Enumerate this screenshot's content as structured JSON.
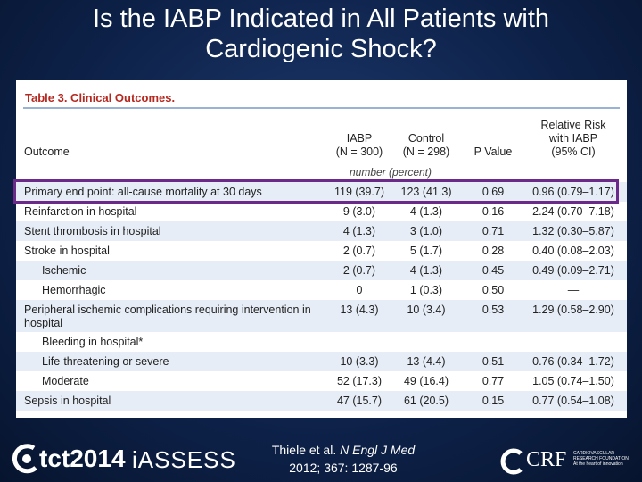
{
  "title": [
    "Is the IABP Indicated in All Patients with",
    "Cardiogenic Shock?"
  ],
  "table": {
    "caption": "Table 3. Clinical Outcomes.",
    "header": [
      [
        "Outcome"
      ],
      [
        "IABP",
        "(N = 300)"
      ],
      [
        "Control",
        "(N = 298)"
      ],
      [
        "P Value"
      ],
      [
        "Relative Risk",
        "with IABP",
        "(95% CI)"
      ]
    ],
    "unit_note": "number (percent)",
    "rows": [
      {
        "cells": [
          "Primary end point: all-cause mortality at 30 days",
          "119 (39.7)",
          "123 (41.3)",
          "0.69",
          "0.96 (0.79–1.17)"
        ],
        "highlight": true
      },
      {
        "cells": [
          "Reinfarction in hospital",
          "9 (3.0)",
          "4 (1.3)",
          "0.16",
          "2.24 (0.70–7.18)"
        ]
      },
      {
        "cells": [
          "Stent thrombosis in hospital",
          "4 (1.3)",
          "3 (1.0)",
          "0.71",
          "1.32 (0.30–5.87)"
        ]
      },
      {
        "cells": [
          "Stroke in hospital",
          "2 (0.7)",
          "5 (1.7)",
          "0.28",
          "0.40 (0.08–2.03)"
        ]
      },
      {
        "cells": [
          "Ischemic",
          "2 (0.7)",
          "4 (1.3)",
          "0.45",
          "0.49 (0.09–2.71)"
        ],
        "sub": true
      },
      {
        "cells": [
          "Hemorrhagic",
          "0",
          "1 (0.3)",
          "0.50",
          "—"
        ],
        "sub": true
      },
      {
        "cells": [
          "Peripheral ischemic complications requiring intervention in hospital",
          "13 (4.3)",
          "10 (3.4)",
          "0.53",
          "1.29 (0.58–2.90)"
        ]
      },
      {
        "cells": [
          "Bleeding in hospital*"
        ],
        "sub": true
      },
      {
        "cells": [
          "Life-threatening or severe",
          "10 (3.3)",
          "13 (4.4)",
          "0.51",
          "0.76 (0.34–1.72)"
        ],
        "sub": true
      },
      {
        "cells": [
          "Moderate",
          "52 (17.3)",
          "49 (16.4)",
          "0.77",
          "1.05 (0.74–1.50)"
        ],
        "sub": true
      },
      {
        "cells": [
          "Sepsis in hospital",
          "47 (15.7)",
          "61 (20.5)",
          "0.15",
          "0.77 (0.54–1.08)"
        ]
      }
    ]
  },
  "citation": {
    "authors": "Thiele et al.",
    "journal": "N Engl J Med",
    "ref": "2012; 367: 1287-96"
  },
  "footer": {
    "left_logo": "tct2014",
    "middle_logo": "iASSESS",
    "right_logo": "CRF",
    "right_sub": [
      "CARDIOVASCULAR",
      "RESEARCH FOUNDATION",
      "At the heart of innovation"
    ]
  }
}
